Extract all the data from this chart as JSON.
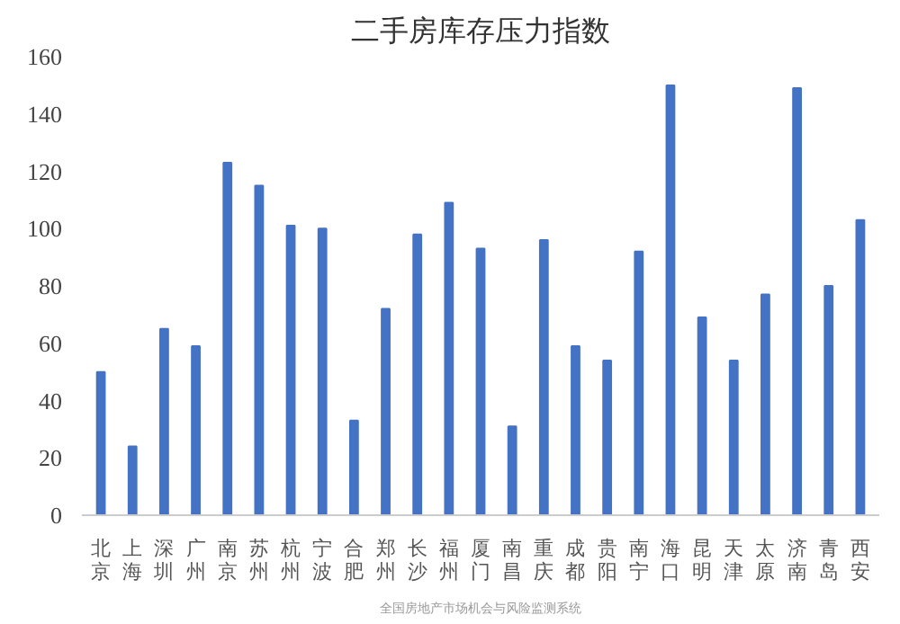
{
  "chart_data": {
    "type": "bar",
    "title": "二手房库存压力指数",
    "categories": [
      "北京",
      "上海",
      "深圳",
      "广州",
      "南京",
      "苏州",
      "杭州",
      "宁波",
      "合肥",
      "郑州",
      "长沙",
      "福州",
      "厦门",
      "南昌",
      "重庆",
      "成都",
      "贵阳",
      "南宁",
      "海口",
      "昆明",
      "天津",
      "太原",
      "济南",
      "青岛",
      "西安"
    ],
    "values": [
      50,
      24,
      65,
      59,
      123,
      115,
      101,
      100,
      33,
      72,
      98,
      109,
      93,
      31,
      96,
      59,
      54,
      92,
      150,
      69,
      54,
      77,
      149,
      80,
      103
    ],
    "color": "#4472c4",
    "ylim": [
      0,
      160
    ],
    "yticks": [
      0,
      20,
      40,
      60,
      80,
      100,
      120,
      140,
      160
    ],
    "grid": false,
    "annotations": [
      "全国房地产市场机会与风险监测系统"
    ]
  }
}
